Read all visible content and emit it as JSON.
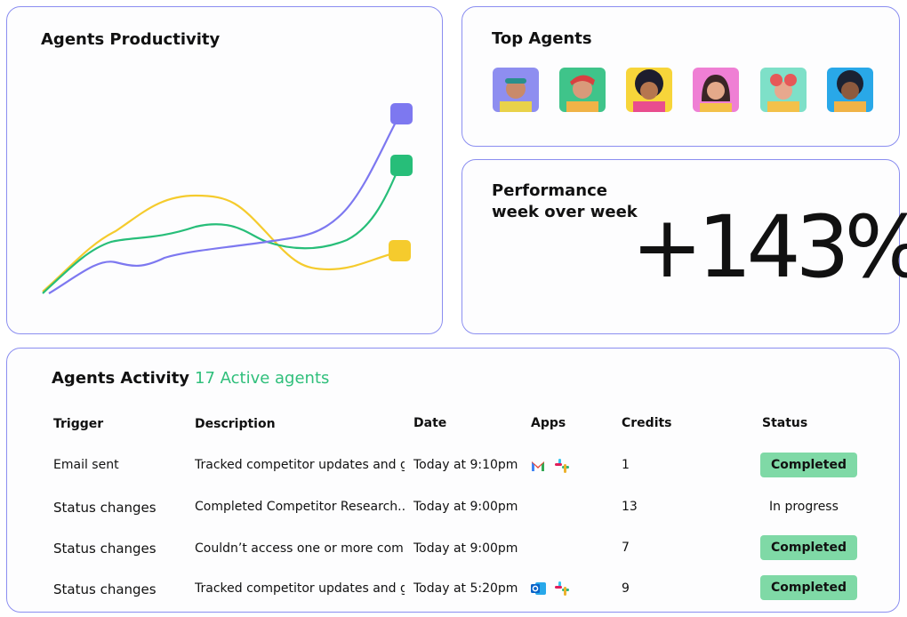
{
  "productivity": {
    "title": "Agents Productivity"
  },
  "top_agents": {
    "title": "Top Agents"
  },
  "performance": {
    "title_lines": [
      "Performance",
      "week over week"
    ],
    "value": "+143%"
  },
  "activity": {
    "title": "Agents Activity",
    "subtitle": "17 Active agents",
    "columns": [
      "Trigger",
      "Description",
      "Date",
      "Apps",
      "Credits",
      "Status"
    ],
    "rows": [
      [
        "Email sent",
        "Tracked competitor updates and g...",
        "Today at 9:10pm",
        1,
        "Completed"
      ],
      [
        "Status changes",
        "Completed Competitor Research...",
        "Today at 9:00pm",
        13,
        "In progress"
      ],
      [
        "Status changes",
        "Couldn’t access one or more com...",
        "Today at 9:00pm",
        7,
        "Completed"
      ],
      [
        "Status changes",
        "Tracked competitor updates and g...",
        "Today at 5:20pm",
        9,
        "Completed"
      ]
    ]
  }
}
